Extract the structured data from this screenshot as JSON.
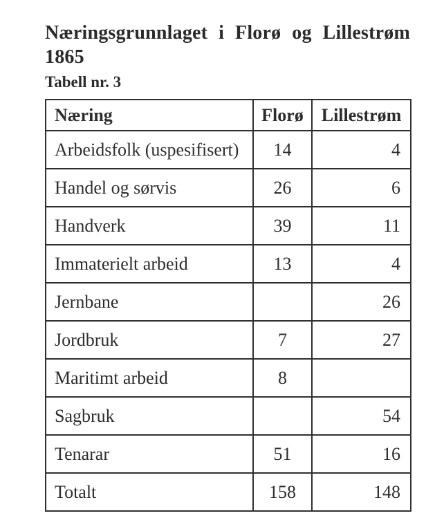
{
  "page": {
    "title_line1": "Næringsgrunnlaget i Florø og Lillestrøm",
    "title_line2": "1865",
    "subtitle": "Tabell nr. 3"
  },
  "table": {
    "columns": [
      "Næring",
      "Florø",
      "Lillestrøm"
    ],
    "rows": [
      {
        "naering": "Arbeidsfolk (uspesifisert)",
        "floro": "14",
        "lillestrom": "4"
      },
      {
        "naering": "Handel og sørvis",
        "floro": "26",
        "lillestrom": "6"
      },
      {
        "naering": "Handverk",
        "floro": "39",
        "lillestrom": "11"
      },
      {
        "naering": "Immaterielt arbeid",
        "floro": "13",
        "lillestrom": "4"
      },
      {
        "naering": "Jernbane",
        "floro": "",
        "lillestrom": "26"
      },
      {
        "naering": "Jordbruk",
        "floro": "7",
        "lillestrom": "27"
      },
      {
        "naering": "Maritimt arbeid",
        "floro": "8",
        "lillestrom": ""
      },
      {
        "naering": "Sagbruk",
        "floro": "",
        "lillestrom": "54"
      },
      {
        "naering": "Tenarar",
        "floro": "51",
        "lillestrom": "16"
      },
      {
        "naering": "Totalt",
        "floro": "158",
        "lillestrom": "148"
      }
    ]
  },
  "colors": {
    "background": "#ffffff",
    "text": "#2b2b2b",
    "border": "#2f2f2f"
  }
}
